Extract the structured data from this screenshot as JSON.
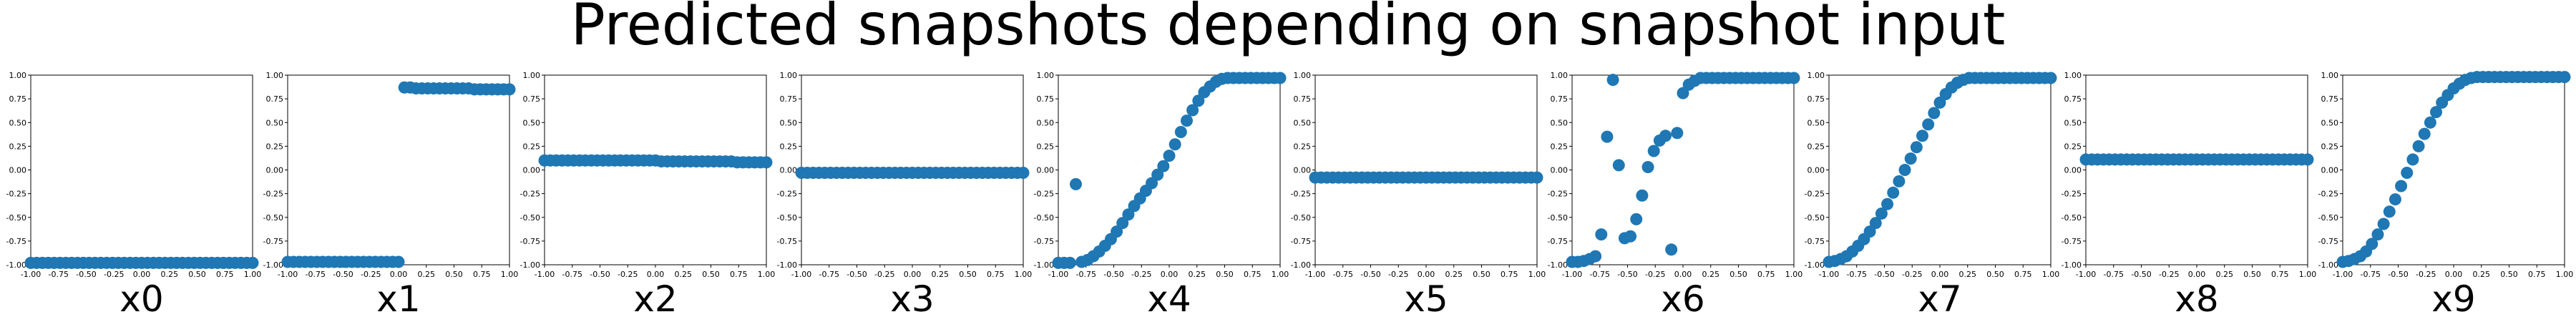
{
  "chart_data": {
    "type": "scatter",
    "title": "Predicted snapshots depending on snapshot input",
    "xlim": [
      -1,
      1
    ],
    "ylim": [
      -1,
      1
    ],
    "x_ticks": [
      "-1.00",
      "-0.75",
      "-0.50",
      "-0.25",
      "0.00",
      "0.25",
      "0.50",
      "0.75",
      "1.00"
    ],
    "y_ticks": [
      "-1.00",
      "-0.75",
      "-0.50",
      "-0.25",
      "0.00",
      "0.25",
      "0.50",
      "0.75",
      "1.00"
    ],
    "marker_color": "#1f77b4",
    "x": [
      -1.0,
      -0.9474,
      -0.8947,
      -0.8421,
      -0.7895,
      -0.7368,
      -0.6842,
      -0.6316,
      -0.5789,
      -0.5263,
      -0.4737,
      -0.4211,
      -0.3684,
      -0.3158,
      -0.2632,
      -0.2105,
      -0.1579,
      -0.1053,
      -0.0526,
      0.0,
      0.0526,
      0.1053,
      0.1579,
      0.2105,
      0.2632,
      0.3158,
      0.3684,
      0.4211,
      0.4737,
      0.5263,
      0.5789,
      0.6316,
      0.6842,
      0.7368,
      0.7895,
      0.8421,
      0.8947,
      0.9474,
      1.0
    ],
    "subplots": [
      {
        "label": "x0",
        "y": [
          -0.98,
          -0.98,
          -0.98,
          -0.98,
          -0.98,
          -0.98,
          -0.98,
          -0.98,
          -0.98,
          -0.98,
          -0.98,
          -0.98,
          -0.98,
          -0.98,
          -0.98,
          -0.98,
          -0.98,
          -0.98,
          -0.98,
          -0.98,
          -0.98,
          -0.98,
          -0.98,
          -0.98,
          -0.98,
          -0.98,
          -0.98,
          -0.98,
          -0.98,
          -0.98,
          -0.98,
          -0.98,
          -0.98,
          -0.98,
          -0.98,
          -0.98,
          -0.98,
          -0.98,
          -0.98
        ]
      },
      {
        "label": "x1",
        "y": [
          -0.97,
          -0.97,
          -0.97,
          -0.97,
          -0.97,
          -0.97,
          -0.97,
          -0.97,
          -0.97,
          -0.97,
          -0.97,
          -0.97,
          -0.97,
          -0.97,
          -0.97,
          -0.97,
          -0.97,
          -0.97,
          -0.97,
          -0.97,
          0.87,
          0.87,
          0.86,
          0.86,
          0.86,
          0.86,
          0.86,
          0.86,
          0.86,
          0.86,
          0.86,
          0.86,
          0.85,
          0.85,
          0.85,
          0.85,
          0.85,
          0.85,
          0.85
        ]
      },
      {
        "label": "x2",
        "y": [
          0.1,
          0.1,
          0.1,
          0.1,
          0.1,
          0.1,
          0.1,
          0.1,
          0.1,
          0.1,
          0.1,
          0.1,
          0.1,
          0.1,
          0.1,
          0.1,
          0.1,
          0.1,
          0.1,
          0.1,
          0.09,
          0.09,
          0.09,
          0.09,
          0.09,
          0.09,
          0.09,
          0.09,
          0.09,
          0.09,
          0.09,
          0.09,
          0.09,
          0.08,
          0.08,
          0.08,
          0.08,
          0.08,
          0.08
        ]
      },
      {
        "label": "x3",
        "y": [
          -0.03,
          -0.03,
          -0.03,
          -0.03,
          -0.03,
          -0.03,
          -0.03,
          -0.03,
          -0.03,
          -0.03,
          -0.03,
          -0.03,
          -0.03,
          -0.03,
          -0.03,
          -0.03,
          -0.03,
          -0.03,
          -0.03,
          -0.03,
          -0.03,
          -0.03,
          -0.03,
          -0.03,
          -0.03,
          -0.03,
          -0.03,
          -0.03,
          -0.03,
          -0.03,
          -0.03,
          -0.03,
          -0.03,
          -0.03,
          -0.03,
          -0.03,
          -0.03,
          -0.03,
          -0.03
        ]
      },
      {
        "label": "x4",
        "y": [
          -0.98,
          -0.98,
          -0.98,
          -0.15,
          -0.97,
          -0.95,
          -0.91,
          -0.86,
          -0.8,
          -0.73,
          -0.65,
          -0.56,
          -0.47,
          -0.38,
          -0.3,
          -0.22,
          -0.14,
          -0.05,
          0.04,
          0.15,
          0.27,
          0.4,
          0.52,
          0.63,
          0.73,
          0.82,
          0.88,
          0.93,
          0.96,
          0.97,
          0.97,
          0.97,
          0.97,
          0.97,
          0.97,
          0.97,
          0.97,
          0.97,
          0.97
        ]
      },
      {
        "label": "x5",
        "y": [
          -0.08,
          -0.08,
          -0.08,
          -0.08,
          -0.08,
          -0.08,
          -0.08,
          -0.08,
          -0.08,
          -0.08,
          -0.08,
          -0.08,
          -0.08,
          -0.08,
          -0.08,
          -0.08,
          -0.08,
          -0.08,
          -0.08,
          -0.08,
          -0.08,
          -0.08,
          -0.08,
          -0.08,
          -0.08,
          -0.08,
          -0.08,
          -0.08,
          -0.08,
          -0.08,
          -0.08,
          -0.08,
          -0.08,
          -0.08,
          -0.08,
          -0.08,
          -0.08,
          -0.08,
          -0.08
        ]
      },
      {
        "label": "x6",
        "y": [
          -0.97,
          -0.97,
          -0.96,
          -0.94,
          -0.91,
          -0.68,
          0.35,
          0.95,
          0.05,
          -0.72,
          -0.7,
          -0.52,
          -0.27,
          0.03,
          0.2,
          0.31,
          0.36,
          -0.84,
          0.39,
          0.81,
          0.9,
          0.94,
          0.97,
          0.97,
          0.97,
          0.97,
          0.97,
          0.97,
          0.97,
          0.97,
          0.97,
          0.97,
          0.97,
          0.97,
          0.97,
          0.97,
          0.97,
          0.97,
          0.97
        ]
      },
      {
        "label": "x7",
        "y": [
          -0.97,
          -0.96,
          -0.94,
          -0.91,
          -0.86,
          -0.8,
          -0.73,
          -0.65,
          -0.56,
          -0.46,
          -0.36,
          -0.24,
          -0.12,
          0.0,
          0.12,
          0.24,
          0.36,
          0.48,
          0.6,
          0.71,
          0.8,
          0.87,
          0.92,
          0.95,
          0.97,
          0.97,
          0.97,
          0.97,
          0.97,
          0.97,
          0.97,
          0.97,
          0.97,
          0.97,
          0.97,
          0.97,
          0.97,
          0.97,
          0.97
        ]
      },
      {
        "label": "x8",
        "y": [
          0.11,
          0.11,
          0.11,
          0.11,
          0.11,
          0.11,
          0.11,
          0.11,
          0.11,
          0.11,
          0.11,
          0.11,
          0.11,
          0.11,
          0.11,
          0.11,
          0.11,
          0.11,
          0.11,
          0.11,
          0.11,
          0.11,
          0.11,
          0.11,
          0.11,
          0.11,
          0.11,
          0.11,
          0.11,
          0.11,
          0.11,
          0.11,
          0.11,
          0.11,
          0.11,
          0.11,
          0.11,
          0.11,
          0.11
        ]
      },
      {
        "label": "x9",
        "y": [
          -0.97,
          -0.96,
          -0.94,
          -0.91,
          -0.86,
          -0.78,
          -0.68,
          -0.57,
          -0.44,
          -0.31,
          -0.17,
          -0.03,
          0.11,
          0.25,
          0.38,
          0.5,
          0.61,
          0.71,
          0.79,
          0.86,
          0.91,
          0.95,
          0.97,
          0.98,
          0.98,
          0.98,
          0.98,
          0.98,
          0.98,
          0.98,
          0.98,
          0.98,
          0.98,
          0.98,
          0.98,
          0.98,
          0.98,
          0.98,
          0.98
        ]
      }
    ]
  }
}
